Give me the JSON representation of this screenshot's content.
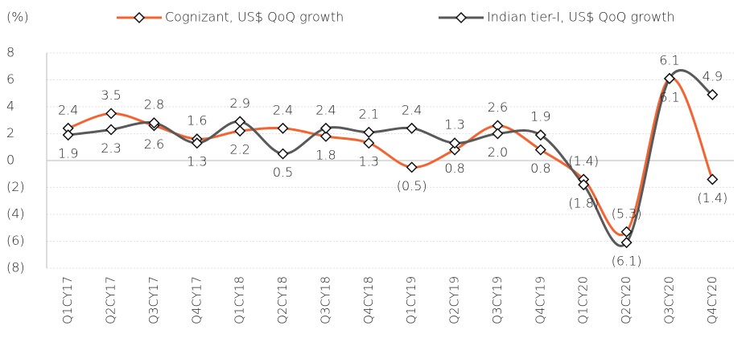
{
  "chart_data": {
    "type": "line",
    "y_label": "(%)",
    "categories": [
      "Q1CY17",
      "Q2CY17",
      "Q3CY17",
      "Q4CY17",
      "Q1CY18",
      "Q2CY18",
      "Q3CY18",
      "Q4CY18",
      "Q1CY19",
      "Q2CY19",
      "Q3CY19",
      "Q4CY19",
      "Q1CY20",
      "Q2CY20",
      "Q3CY20",
      "Q4CY20"
    ],
    "series": [
      {
        "name": "Cognizant, US$ QoQ growth",
        "color": "#f26532",
        "values": [
          2.4,
          3.5,
          2.6,
          1.6,
          2.2,
          2.4,
          1.8,
          1.3,
          -0.5,
          0.8,
          2.6,
          0.8,
          -1.4,
          -5.3,
          6.1,
          -1.4
        ],
        "value_labels": [
          "2.4",
          "3.5",
          "2.6",
          "1.6",
          "2.2",
          "2.4",
          "1.8",
          "1.3",
          "(0.5)",
          "0.8",
          "2.6",
          "0.8",
          "(1.4)",
          "(5.3)",
          "6.1",
          "(1.4)"
        ]
      },
      {
        "name": "Indian tier-I, US$ QoQ growth",
        "color": "#595959",
        "values": [
          1.9,
          2.3,
          2.8,
          1.3,
          2.9,
          0.5,
          2.4,
          2.1,
          2.4,
          1.3,
          2.0,
          1.9,
          -1.8,
          -6.1,
          6.1,
          4.9
        ],
        "value_labels": [
          "1.9",
          "2.3",
          "2.8",
          "1.3",
          "2.9",
          "0.5",
          "2.4",
          "2.1",
          "2.4",
          "1.3",
          "2.0",
          "1.9",
          "(1.8)",
          "(6.1)",
          "6.1",
          "4.9"
        ]
      }
    ],
    "ylim": [
      -8,
      8
    ],
    "yticks": [
      {
        "value": -8,
        "label": "(8)"
      },
      {
        "value": -6,
        "label": "(6)"
      },
      {
        "value": -4,
        "label": "(4)"
      },
      {
        "value": -2,
        "label": "(2)"
      },
      0,
      2,
      4,
      6,
      8
    ],
    "grid": true,
    "legend": "top"
  }
}
